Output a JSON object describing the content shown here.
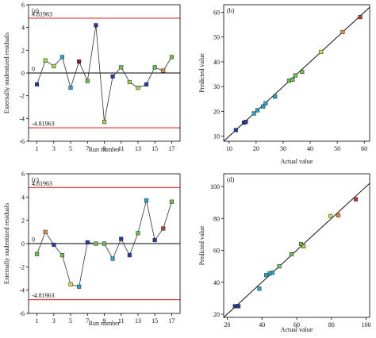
{
  "colors": {
    "reference_line": "#e03030",
    "series_line": "#333333",
    "fit_line": "#111111",
    "frame": "#000000"
  },
  "chart_data": [
    {
      "type": "line",
      "panel_label": "(a)",
      "xlabel": "Run number",
      "ylabel": "Externally studentized residuals",
      "xlim": [
        0,
        18
      ],
      "ylim": [
        -6,
        6
      ],
      "xticks": [
        1,
        3,
        5,
        7,
        9,
        11,
        13,
        15,
        17
      ],
      "yticks": [
        -6,
        -4,
        -2,
        0,
        2,
        4,
        6
      ],
      "reference_lines": [
        {
          "y": 4.81963,
          "label": "4.81963"
        },
        {
          "y": -4.81963,
          "label": "-4.81963"
        },
        {
          "y": 0,
          "label": "0"
        }
      ],
      "x": [
        1,
        2,
        3,
        4,
        5,
        6,
        7,
        8,
        9,
        10,
        11,
        12,
        13,
        14,
        15,
        16,
        17
      ],
      "y": [
        -1.0,
        1.1,
        0.6,
        1.4,
        -1.3,
        1.0,
        -0.7,
        4.2,
        -4.3,
        -0.3,
        0.5,
        -0.8,
        -1.3,
        -1.0,
        0.5,
        0.2,
        1.4
      ],
      "point_colors": [
        "#2b3a9e",
        "#a6d44f",
        "#a6d44f",
        "#2aa6c9",
        "#2aa6c9",
        "#7a1f4a",
        "#6fbf4f",
        "#2b3a9e",
        "#a6d44f",
        "#2b3a9e",
        "#6fbf4f",
        "#a6d44f",
        "#a6d44f",
        "#2b3a9e",
        "#6fbf4f",
        "#e08a3a",
        "#6fbf4f"
      ]
    },
    {
      "type": "scatter",
      "panel_label": "(b)",
      "xlabel": "Actual value",
      "ylabel": "Predicted value",
      "xlim": [
        8,
        62
      ],
      "ylim": [
        8,
        63
      ],
      "xticks": [
        10,
        20,
        30,
        40,
        50,
        60
      ],
      "yticks": [
        10,
        20,
        30,
        40,
        50,
        60
      ],
      "fit_line": [
        [
          8,
          8
        ],
        [
          62,
          62
        ]
      ],
      "x": [
        12.5,
        15.5,
        16.2,
        19.2,
        20.5,
        22.6,
        23.5,
        27.0,
        32.2,
        33.5,
        34.5,
        37.0,
        44.0,
        52.0,
        58.5
      ],
      "y": [
        12.5,
        15.5,
        15.8,
        19.2,
        20.5,
        22.0,
        23.3,
        26.0,
        32.4,
        32.8,
        34.5,
        36.0,
        44.0,
        52.0,
        58.0
      ],
      "point_colors": [
        "#2b3a9e",
        "#2b3a9e",
        "#2b3a9e",
        "#2aa6c9",
        "#2aa6c9",
        "#2aa6c9",
        "#2aa6c9",
        "#2aa6c9",
        "#6fbf4f",
        "#6fbf4f",
        "#6fbf4f",
        "#6fbf4f",
        "#d8d85a",
        "#e08a3a",
        "#c0392b"
      ]
    },
    {
      "type": "line",
      "panel_label": "(c)",
      "xlabel": "Run number",
      "ylabel": "Externally studentized residuals",
      "xlim": [
        0,
        18
      ],
      "ylim": [
        -6,
        6
      ],
      "xticks": [
        1,
        3,
        5,
        7,
        9,
        11,
        13,
        15,
        17
      ],
      "yticks": [
        -6,
        -4,
        -2,
        0,
        2,
        4,
        6
      ],
      "reference_lines": [
        {
          "y": 4.81963,
          "label": "4.81963"
        },
        {
          "y": -4.81963,
          "label": "-4.81963"
        },
        {
          "y": 0,
          "label": "0"
        }
      ],
      "x": [
        1,
        2,
        3,
        4,
        5,
        6,
        7,
        8,
        9,
        10,
        11,
        12,
        13,
        14,
        15,
        16,
        17
      ],
      "y": [
        -0.9,
        1.0,
        -0.1,
        -1.0,
        -3.5,
        -3.7,
        0.1,
        0.0,
        0.0,
        -1.3,
        0.4,
        -1.0,
        0.9,
        3.7,
        0.3,
        1.3,
        3.6
      ],
      "point_colors": [
        "#6fbf4f",
        "#e08a3a",
        "#2b3a9e",
        "#6fbf4f",
        "#d8d85a",
        "#2aa6c9",
        "#2b3a9e",
        "#6fbf4f",
        "#6fbf4f",
        "#2aa6c9",
        "#2b3a9e",
        "#2b3a9e",
        "#6fbf4f",
        "#2aa6c9",
        "#2b3a9e",
        "#c0392b",
        "#6fbf4f"
      ]
    },
    {
      "type": "scatter",
      "panel_label": "(d)",
      "xlabel": "Actual value",
      "ylabel": "Predicted value",
      "xlim": [
        18,
        102
      ],
      "ylim": [
        18,
        108
      ],
      "xticks": [
        20,
        40,
        60,
        80,
        100
      ],
      "yticks": [
        20,
        40,
        60,
        80,
        100
      ],
      "fit_line": [
        [
          18,
          18
        ],
        [
          102,
          102
        ]
      ],
      "x": [
        24.5,
        25.5,
        26.5,
        38.5,
        42.5,
        44.5,
        46.0,
        50.0,
        57.0,
        62.5,
        64.0,
        79.5,
        84.0,
        94.0
      ],
      "y": [
        25.0,
        25.0,
        25.0,
        36.0,
        44.5,
        45.5,
        46.0,
        50.0,
        57.5,
        64.0,
        62.5,
        81.5,
        82.0,
        92.0
      ],
      "point_colors": [
        "#2b3a9e",
        "#2b3a9e",
        "#2b3a9e",
        "#2aa6c9",
        "#2aa6c9",
        "#2aa6c9",
        "#2aa6c9",
        "#6fbf4f",
        "#6fbf4f",
        "#6fbf4f",
        "#a6d44f",
        "#d8d85a",
        "#e08a3a",
        "#c0392b"
      ]
    }
  ]
}
